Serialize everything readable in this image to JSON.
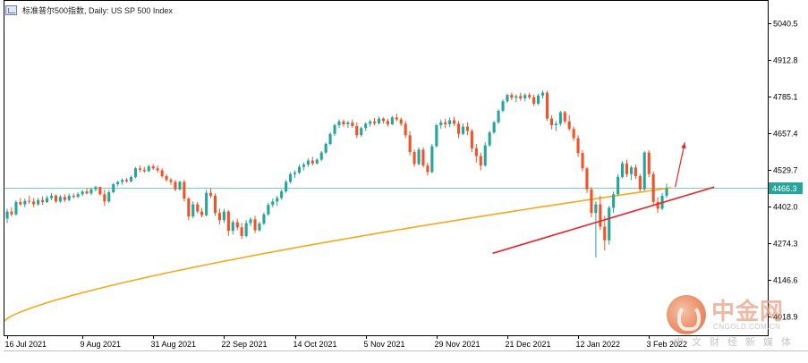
{
  "title": "标准普尔500指数, Daily:  US SP 500 Index",
  "current_price_label": "4466.3",
  "colors": {
    "bull": "#26a69a",
    "bear": "#ef5327",
    "ma": "#f7a81b",
    "price_line": "#7fcfb4",
    "trendline": "#e8252b",
    "axis": "#000000",
    "label_bg": "#26a69a"
  },
  "watermark": {
    "cn_text": "中金网",
    "url": "CNGOLD.COM.CN",
    "subtitle": "中文财经新媒体"
  },
  "chart_data": {
    "type": "candlestick",
    "title": "标准普尔500指数, Daily:  US SP 500 Index",
    "y_ticks": [
      "5040.5",
      "4912.8",
      "4785.1",
      "4657.4",
      "4529.7",
      "4402.0",
      "4274.3",
      "4146.6",
      "4018.9"
    ],
    "ylim": [
      3955,
      5120
    ],
    "x_ticks": [
      "16 Jul 2021",
      "9 Aug 2021",
      "31 Aug 2021",
      "22 Sep 2021",
      "14 Oct 2021",
      "5 Nov 2021",
      "29 Nov 2021",
      "21 Dec 2021",
      "12 Jan 2022",
      "3 Feb 2022"
    ],
    "x_tick_index": [
      0,
      17,
      33,
      49,
      65,
      81,
      97,
      113,
      129,
      145
    ],
    "last_price": 4466.3,
    "ohlc": [
      [
        4360,
        4395,
        4345,
        4385
      ],
      [
        4385,
        4400,
        4368,
        4375
      ],
      [
        4375,
        4425,
        4370,
        4418
      ],
      [
        4418,
        4432,
        4405,
        4410
      ],
      [
        4410,
        4430,
        4400,
        4422
      ],
      [
        4422,
        4440,
        4412,
        4420
      ],
      [
        4420,
        4432,
        4400,
        4410
      ],
      [
        4410,
        4432,
        4405,
        4425
      ],
      [
        4425,
        4438,
        4408,
        4418
      ],
      [
        4418,
        4440,
        4415,
        4432
      ],
      [
        4432,
        4450,
        4425,
        4440
      ],
      [
        4440,
        4445,
        4415,
        4420
      ],
      [
        4420,
        4442,
        4415,
        4436
      ],
      [
        4436,
        4445,
        4418,
        4425
      ],
      [
        4425,
        4448,
        4420,
        4440
      ],
      [
        4440,
        4448,
        4430,
        4436
      ],
      [
        4436,
        4452,
        4432,
        4445
      ],
      [
        4445,
        4460,
        4438,
        4455
      ],
      [
        4455,
        4465,
        4445,
        4448
      ],
      [
        4448,
        4468,
        4442,
        4462
      ],
      [
        4462,
        4475,
        4455,
        4470
      ],
      [
        4470,
        4472,
        4440,
        4445
      ],
      [
        4445,
        4460,
        4405,
        4420
      ],
      [
        4420,
        4460,
        4415,
        4452
      ],
      [
        4452,
        4485,
        4448,
        4480
      ],
      [
        4480,
        4492,
        4472,
        4488
      ],
      [
        4488,
        4500,
        4478,
        4495
      ],
      [
        4495,
        4502,
        4485,
        4490
      ],
      [
        4490,
        4510,
        4486,
        4505
      ],
      [
        4505,
        4540,
        4500,
        4535
      ],
      [
        4535,
        4545,
        4522,
        4530
      ],
      [
        4530,
        4540,
        4520,
        4525
      ],
      [
        4525,
        4548,
        4522,
        4542
      ],
      [
        4542,
        4550,
        4530,
        4535
      ],
      [
        4535,
        4545,
        4520,
        4528
      ],
      [
        4528,
        4535,
        4502,
        4508
      ],
      [
        4508,
        4515,
        4488,
        4495
      ],
      [
        4495,
        4502,
        4478,
        4488
      ],
      [
        4488,
        4495,
        4455,
        4462
      ],
      [
        4462,
        4492,
        4458,
        4488
      ],
      [
        4488,
        4495,
        4420,
        4430
      ],
      [
        4430,
        4435,
        4355,
        4368
      ],
      [
        4368,
        4420,
        4362,
        4410
      ],
      [
        4410,
        4418,
        4378,
        4385
      ],
      [
        4385,
        4398,
        4365,
        4372
      ],
      [
        4372,
        4460,
        4368,
        4450
      ],
      [
        4450,
        4465,
        4432,
        4440
      ],
      [
        4440,
        4448,
        4370,
        4380
      ],
      [
        4380,
        4395,
        4340,
        4355
      ],
      [
        4355,
        4395,
        4345,
        4385
      ],
      [
        4385,
        4390,
        4300,
        4318
      ],
      [
        4318,
        4355,
        4305,
        4348
      ],
      [
        4348,
        4360,
        4320,
        4330
      ],
      [
        4330,
        4345,
        4290,
        4300
      ],
      [
        4300,
        4355,
        4295,
        4345
      ],
      [
        4345,
        4365,
        4335,
        4358
      ],
      [
        4358,
        4370,
        4310,
        4320
      ],
      [
        4320,
        4350,
        4315,
        4343
      ],
      [
        4343,
        4382,
        4338,
        4375
      ],
      [
        4375,
        4415,
        4370,
        4408
      ],
      [
        4408,
        4430,
        4400,
        4420
      ],
      [
        4420,
        4440,
        4405,
        4432
      ],
      [
        4432,
        4462,
        4425,
        4455
      ],
      [
        4455,
        4495,
        4450,
        4488
      ],
      [
        4488,
        4522,
        4482,
        4515
      ],
      [
        4515,
        4528,
        4502,
        4520
      ],
      [
        4520,
        4548,
        4515,
        4540
      ],
      [
        4540,
        4555,
        4528,
        4548
      ],
      [
        4548,
        4570,
        4540,
        4562
      ],
      [
        4562,
        4575,
        4545,
        4552
      ],
      [
        4552,
        4570,
        4548,
        4565
      ],
      [
        4565,
        4595,
        4560,
        4590
      ],
      [
        4590,
        4625,
        4585,
        4620
      ],
      [
        4620,
        4660,
        4615,
        4655
      ],
      [
        4655,
        4690,
        4648,
        4685
      ],
      [
        4685,
        4705,
        4675,
        4698
      ],
      [
        4698,
        4705,
        4680,
        4688
      ],
      [
        4688,
        4700,
        4676,
        4694
      ],
      [
        4694,
        4705,
        4675,
        4682
      ],
      [
        4682,
        4695,
        4640,
        4650
      ],
      [
        4650,
        4680,
        4645,
        4675
      ],
      [
        4675,
        4695,
        4665,
        4690
      ],
      [
        4690,
        4705,
        4680,
        4698
      ],
      [
        4698,
        4710,
        4684,
        4692
      ],
      [
        4692,
        4715,
        4688,
        4708
      ],
      [
        4708,
        4712,
        4690,
        4700
      ],
      [
        4700,
        4708,
        4680,
        4688
      ],
      [
        4688,
        4718,
        4685,
        4712
      ],
      [
        4712,
        4725,
        4698,
        4705
      ],
      [
        4705,
        4712,
        4682,
        4690
      ],
      [
        4690,
        4700,
        4640,
        4650
      ],
      [
        4650,
        4665,
        4580,
        4592
      ],
      [
        4592,
        4600,
        4540,
        4550
      ],
      [
        4550,
        4608,
        4545,
        4600
      ],
      [
        4600,
        4608,
        4538,
        4545
      ],
      [
        4545,
        4555,
        4510,
        4522
      ],
      [
        4522,
        4620,
        4518,
        4612
      ],
      [
        4612,
        4690,
        4608,
        4685
      ],
      [
        4685,
        4705,
        4672,
        4695
      ],
      [
        4695,
        4708,
        4675,
        4688
      ],
      [
        4688,
        4712,
        4678,
        4702
      ],
      [
        4702,
        4715,
        4682,
        4690
      ],
      [
        4690,
        4700,
        4640,
        4655
      ],
      [
        4655,
        4690,
        4650,
        4680
      ],
      [
        4680,
        4695,
        4650,
        4665
      ],
      [
        4665,
        4672,
        4592,
        4605
      ],
      [
        4605,
        4620,
        4555,
        4578
      ],
      [
        4578,
        4590,
        4528,
        4545
      ],
      [
        4545,
        4625,
        4540,
        4615
      ],
      [
        4615,
        4665,
        4610,
        4660
      ],
      [
        4660,
        4700,
        4655,
        4695
      ],
      [
        4695,
        4740,
        4690,
        4735
      ],
      [
        4735,
        4775,
        4730,
        4768
      ],
      [
        4768,
        4795,
        4762,
        4790
      ],
      [
        4790,
        4798,
        4772,
        4780
      ],
      [
        4780,
        4792,
        4765,
        4786
      ],
      [
        4786,
        4798,
        4770,
        4778
      ],
      [
        4778,
        4796,
        4768,
        4790
      ],
      [
        4790,
        4798,
        4775,
        4782
      ],
      [
        4782,
        4790,
        4752,
        4760
      ],
      [
        4760,
        4795,
        4755,
        4788
      ],
      [
        4788,
        4805,
        4778,
        4798
      ],
      [
        4798,
        4805,
        4700,
        4708
      ],
      [
        4708,
        4720,
        4670,
        4685
      ],
      [
        4685,
        4700,
        4665,
        4690
      ],
      [
        4690,
        4735,
        4682,
        4730
      ],
      [
        4730,
        4735,
        4690,
        4698
      ],
      [
        4698,
        4720,
        4665,
        4672
      ],
      [
        4672,
        4680,
        4630,
        4640
      ],
      [
        4640,
        4650,
        4575,
        4588
      ],
      [
        4588,
        4598,
        4525,
        4535
      ],
      [
        4535,
        4540,
        4450,
        4462
      ],
      [
        4462,
        4470,
        4365,
        4380
      ],
      [
        4380,
        4420,
        4225,
        4410
      ],
      [
        4410,
        4440,
        4320,
        4332
      ],
      [
        4332,
        4370,
        4250,
        4285
      ],
      [
        4285,
        4405,
        4270,
        4398
      ],
      [
        4398,
        4455,
        4380,
        4445
      ],
      [
        4445,
        4515,
        4440,
        4505
      ],
      [
        4505,
        4560,
        4500,
        4552
      ],
      [
        4552,
        4565,
        4505,
        4515
      ],
      [
        4515,
        4545,
        4495,
        4538
      ],
      [
        4538,
        4548,
        4498,
        4508
      ],
      [
        4508,
        4515,
        4455,
        4462
      ],
      [
        4462,
        4595,
        4458,
        4590
      ],
      [
        4590,
        4598,
        4505,
        4515
      ],
      [
        4515,
        4525,
        4405,
        4418
      ],
      [
        4418,
        4435,
        4380,
        4395
      ],
      [
        4395,
        4450,
        4390,
        4440
      ],
      [
        4440,
        4482,
        4432,
        4466
      ]
    ],
    "ma": {
      "start": 4003,
      "end": 4468,
      "curvature": 0.72
    },
    "trendline": {
      "from": [
        0.8,
        4240
      ],
      "to": [
        1.0,
        4470
      ]
    },
    "arrow": {
      "from": [
        0.94,
        4470
      ],
      "to": [
        0.985,
        4625
      ]
    }
  }
}
